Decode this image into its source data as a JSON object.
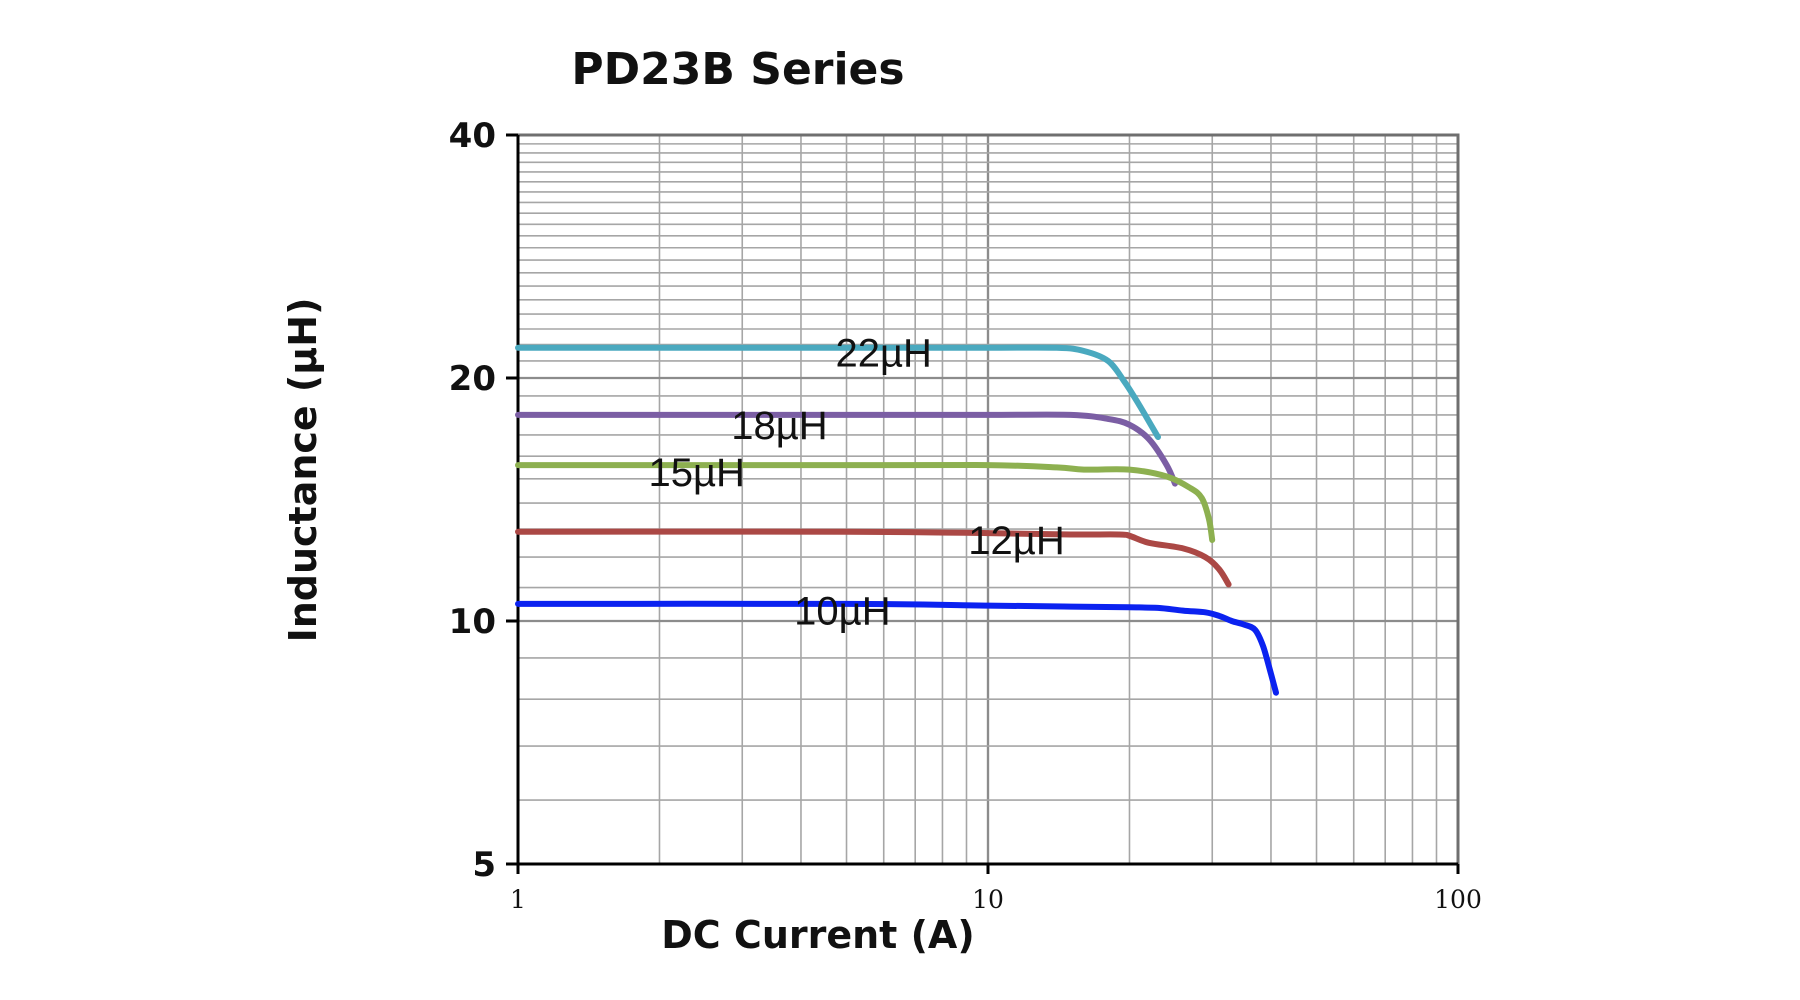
{
  "chart_data": {
    "type": "line",
    "title": "PD23B Series",
    "xlabel": "DC Current (A)",
    "ylabel": "Inductance (µH)",
    "xscale": "log",
    "yscale": "log",
    "xlim": [
      1,
      100
    ],
    "ylim": [
      5,
      40
    ],
    "xticks": [
      {
        "value": 1,
        "label": "1"
      },
      {
        "value": 10,
        "label": "10"
      },
      {
        "value": 100,
        "label": "100"
      }
    ],
    "yticks": [
      {
        "value": 5,
        "label": "5"
      },
      {
        "value": 10,
        "label": "10"
      },
      {
        "value": 20,
        "label": "20"
      },
      {
        "value": 40,
        "label": "40"
      }
    ],
    "grid": true,
    "series": [
      {
        "name": "22µH",
        "color": "#4aa9bf",
        "label_at": [
          6,
          21.5
        ],
        "x": [
          1,
          5,
          10,
          14,
          16,
          18,
          19.5,
          21,
          23
        ],
        "y": [
          21.8,
          21.8,
          21.8,
          21.8,
          21.6,
          21.0,
          19.8,
          18.5,
          16.9
        ]
      },
      {
        "name": "18µH",
        "color": "#7b5ea4",
        "label_at": [
          3.6,
          17.5
        ],
        "x": [
          1,
          5,
          10,
          15,
          18,
          20,
          22,
          24,
          25
        ],
        "y": [
          18.0,
          18.0,
          18.0,
          18.0,
          17.8,
          17.5,
          16.8,
          15.6,
          14.8
        ]
      },
      {
        "name": "15µH",
        "color": "#8db050",
        "label_at": [
          2.4,
          15.3
        ],
        "x": [
          1,
          5,
          10,
          14,
          16,
          20,
          24,
          27,
          28.5,
          29.5,
          30
        ],
        "y": [
          15.6,
          15.6,
          15.6,
          15.5,
          15.4,
          15.4,
          15.1,
          14.6,
          14.2,
          13.4,
          12.6
        ]
      },
      {
        "name": "12µH",
        "color": "#ab4845",
        "label_at": [
          11.5,
          12.6
        ],
        "x": [
          1,
          5,
          10,
          15,
          19,
          20,
          22,
          26,
          29,
          31,
          32.5
        ],
        "y": [
          12.9,
          12.9,
          12.85,
          12.8,
          12.8,
          12.75,
          12.5,
          12.3,
          12.0,
          11.6,
          11.1
        ]
      },
      {
        "name": "10µH",
        "color": "#0b22f0",
        "label_at": [
          4.9,
          10.3
        ],
        "x": [
          1,
          5,
          10,
          15,
          20,
          23,
          26,
          29,
          31,
          33,
          35,
          37,
          38.5,
          40,
          41
        ],
        "y": [
          10.5,
          10.5,
          10.45,
          10.42,
          10.4,
          10.38,
          10.3,
          10.25,
          10.15,
          10.0,
          9.9,
          9.75,
          9.3,
          8.6,
          8.15
        ]
      }
    ]
  }
}
